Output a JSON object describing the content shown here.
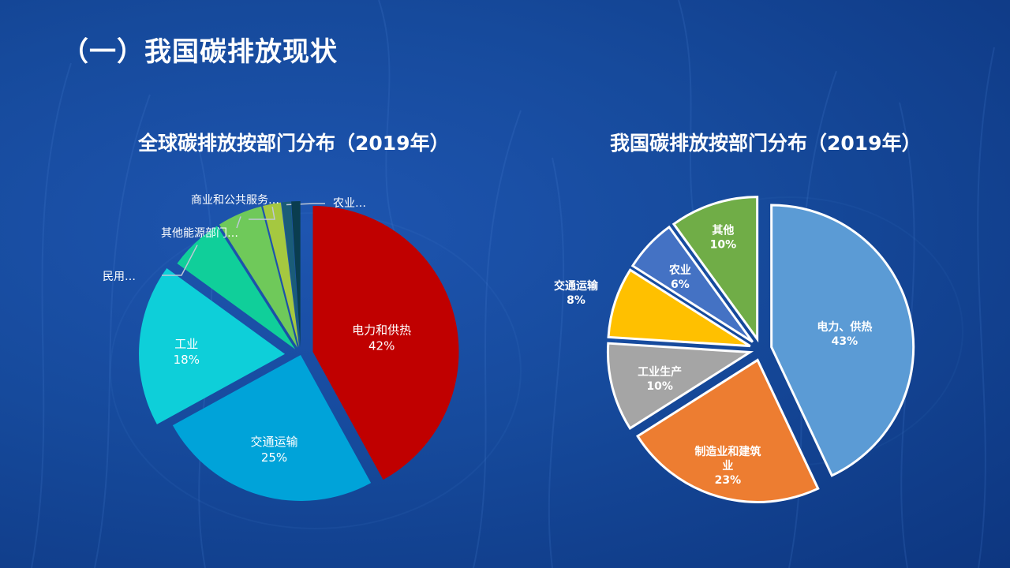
{
  "slide": {
    "title": "（一）我国碳排放现状"
  },
  "chart_data": [
    {
      "type": "pie",
      "title": "全球碳排放按部门分布（2019年）",
      "slices": [
        {
          "label": "电力和供热",
          "value": 42,
          "value_label": "42%",
          "color": "#c00000"
        },
        {
          "label": "交通运输",
          "value": 25,
          "value_label": "25%",
          "color": "#00a3d9"
        },
        {
          "label": "工业",
          "value": 18,
          "value_label": "18%",
          "color": "#0ecfd9"
        },
        {
          "label": "民用…",
          "value": 6,
          "value_label": "",
          "color": "#10cf9a"
        },
        {
          "label": "其他能源部门…",
          "value": 5,
          "value_label": "",
          "color": "#6fc95a"
        },
        {
          "label": "商业和公共服务…",
          "value": 2,
          "value_label": "",
          "color": "#a5c840"
        },
        {
          "label": "农业…",
          "value": 1,
          "value_label": "",
          "color": "#1a5c78"
        },
        {
          "label": "",
          "value": 1,
          "value_label": "",
          "color": "#0a3d4f"
        }
      ]
    },
    {
      "type": "pie",
      "title": "我国碳排放按部门分布（2019年）",
      "slices": [
        {
          "label": "电力、供热",
          "value": 43,
          "value_label": "43%",
          "color": "#5b9bd5"
        },
        {
          "label": "制造业和建筑业",
          "value": 23,
          "value_label": "23%",
          "color": "#ed7d31"
        },
        {
          "label": "工业生产",
          "value": 10,
          "value_label": "10%",
          "color": "#a5a5a5"
        },
        {
          "label": "交通运输",
          "value": 8,
          "value_label": "8%",
          "color": "#ffc000"
        },
        {
          "label": "农业",
          "value": 6,
          "value_label": "6%",
          "color": "#4472c4"
        },
        {
          "label": "其他",
          "value": 10,
          "value_label": "10%",
          "color": "#70ad47"
        }
      ]
    }
  ]
}
